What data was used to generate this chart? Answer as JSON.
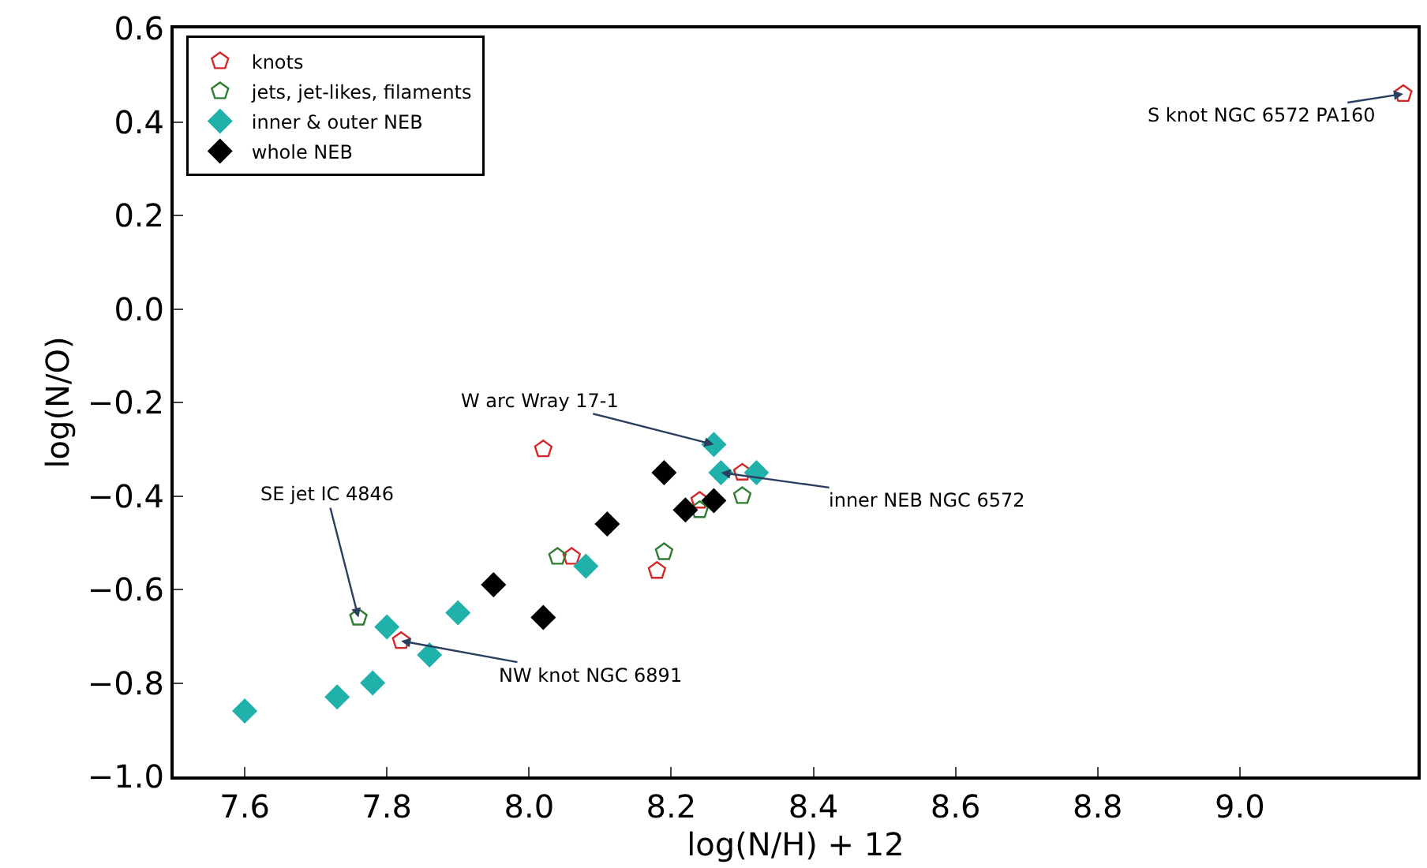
{
  "chart_data": {
    "type": "scatter",
    "xlabel": "log(N/H) + 12",
    "ylabel": "log(N/O)",
    "xlim": [
      7.5,
      9.25
    ],
    "ylim": [
      -1.0,
      0.6
    ],
    "xticks": [
      {
        "value": 7.6,
        "label": "7.6"
      },
      {
        "value": 7.8,
        "label": "7.8"
      },
      {
        "value": 8.0,
        "label": "8.0"
      },
      {
        "value": 8.2,
        "label": "8.2"
      },
      {
        "value": 8.4,
        "label": "8.4"
      },
      {
        "value": 8.6,
        "label": "8.6"
      },
      {
        "value": 8.8,
        "label": "8.8"
      },
      {
        "value": 9.0,
        "label": "9.0"
      }
    ],
    "yticks": [
      {
        "value": -1.0,
        "label": "−1.0"
      },
      {
        "value": -0.8,
        "label": "−0.8"
      },
      {
        "value": -0.6,
        "label": "−0.6"
      },
      {
        "value": -0.4,
        "label": "−0.4"
      },
      {
        "value": -0.2,
        "label": "−0.2"
      },
      {
        "value": 0.0,
        "label": "0.0"
      },
      {
        "value": 0.2,
        "label": "0.2"
      },
      {
        "value": 0.4,
        "label": "0.4"
      },
      {
        "value": 0.6,
        "label": "0.6"
      }
    ],
    "legend": "top left",
    "series": [
      {
        "name": "knots",
        "color": "#d62728",
        "x": [
          8.02,
          8.06,
          8.18,
          7.82,
          8.3,
          8.24,
          9.23
        ],
        "values": [
          -0.3,
          -0.53,
          -0.56,
          -0.71,
          -0.35,
          -0.41,
          0.46
        ]
      },
      {
        "name": "jets, jet-likes, filaments",
        "color": "#2e7d32",
        "x": [
          7.76,
          8.04,
          8.19,
          8.3,
          8.24
        ],
        "values": [
          -0.66,
          -0.53,
          -0.52,
          -0.4,
          -0.43
        ]
      },
      {
        "name": "inner & outer NEB",
        "color": "#20b2aa",
        "marker": "diamond",
        "x": [
          7.6,
          7.73,
          7.78,
          7.8,
          7.86,
          7.9,
          8.08,
          8.26,
          8.27,
          8.32
        ],
        "values": [
          -0.86,
          -0.83,
          -0.8,
          -0.68,
          -0.74,
          -0.65,
          -0.55,
          -0.29,
          -0.35,
          -0.35
        ]
      },
      {
        "name": "whole NEB",
        "color": "#000000",
        "marker": "diamond",
        "x": [
          7.95,
          8.02,
          8.11,
          8.19,
          8.22,
          8.26
        ],
        "values": [
          -0.59,
          -0.66,
          -0.46,
          -0.35,
          -0.43,
          -0.41
        ]
      }
    ],
    "annotations": [
      {
        "text": "W arc Wray 17-1",
        "x": 8.26,
        "y": -0.29
      },
      {
        "text": "SE jet IC 4846",
        "x": 7.76,
        "y": -0.66
      },
      {
        "text": "NW knot NGC 6891",
        "x": 7.82,
        "y": -0.71
      },
      {
        "text": "inner NEB NGC 6572",
        "x": 8.27,
        "y": -0.35
      },
      {
        "text": "S knot NGC 6572 PA160",
        "x": 9.23,
        "y": 0.46
      }
    ]
  }
}
